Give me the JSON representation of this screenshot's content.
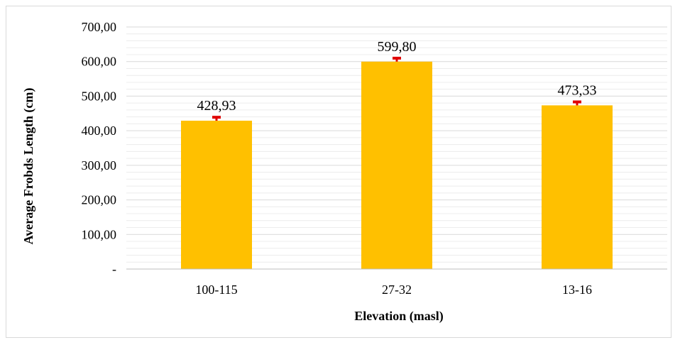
{
  "chart_data": {
    "type": "bar",
    "categories": [
      "100-115",
      "27-32",
      "13-16"
    ],
    "values": [
      428.93,
      599.8,
      473.33
    ],
    "value_labels": [
      "428,93",
      "599,80",
      "473,33"
    ],
    "error": [
      10,
      10,
      10
    ],
    "xlabel": "Elevation (masl)",
    "ylabel": "Average Frobds Length (cm)",
    "ylim": [
      0,
      700
    ],
    "y_ticks": [
      0,
      100,
      200,
      300,
      400,
      500,
      600,
      700
    ],
    "y_tick_labels": [
      "-",
      "100,00",
      "200,00",
      "300,00",
      "400,00",
      "500,00",
      "600,00",
      "700,00"
    ],
    "minor_grid_step": 20,
    "grid": true,
    "legend": "none",
    "colors": {
      "bar": "#FFC000",
      "error_bar": "#E00000",
      "grid_major": "#d9d9d9",
      "grid_minor": "#ececec",
      "axis": "#bfbfbf"
    }
  }
}
